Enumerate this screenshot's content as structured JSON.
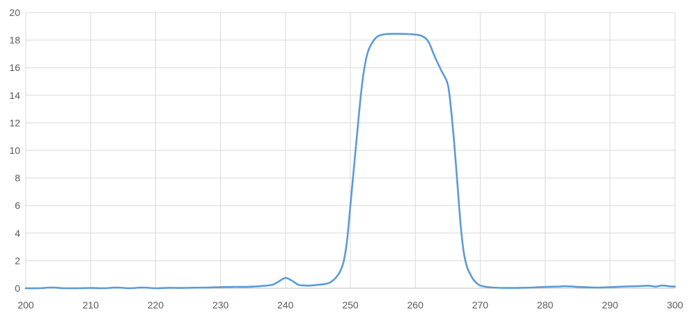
{
  "chart_data": {
    "type": "line",
    "title": "",
    "xlabel": "",
    "ylabel": "",
    "xlim": [
      200,
      300
    ],
    "ylim": [
      0,
      20
    ],
    "x_ticks": [
      200,
      210,
      220,
      230,
      240,
      250,
      260,
      270,
      280,
      290,
      300
    ],
    "y_ticks": [
      0,
      2,
      4,
      6,
      8,
      10,
      12,
      14,
      16,
      18,
      20
    ],
    "grid": true,
    "legend": "none",
    "series": [
      {
        "color": "#5b9bd5",
        "x": [
          200,
          202,
          204,
          206,
          208,
          210,
          212,
          214,
          216,
          218,
          220,
          222,
          224,
          226,
          228,
          230,
          232,
          234,
          236,
          238,
          239,
          240,
          241,
          242,
          243,
          244,
          245,
          246,
          247,
          248,
          248.5,
          249,
          249.5,
          250,
          250.5,
          251,
          251.5,
          252,
          252.5,
          253,
          254,
          255,
          256,
          258,
          260,
          261,
          262,
          263,
          264,
          265,
          265.5,
          266,
          266.5,
          267,
          267.5,
          268,
          268.5,
          269,
          270,
          272,
          275,
          278,
          280,
          282,
          283,
          285,
          288,
          290,
          292,
          294,
          296,
          297,
          298,
          299,
          300
        ],
        "y": [
          0.0,
          0.0,
          0.05,
          0.0,
          0.0,
          0.02,
          0.0,
          0.05,
          0.0,
          0.05,
          0.0,
          0.03,
          0.02,
          0.04,
          0.05,
          0.08,
          0.1,
          0.1,
          0.15,
          0.25,
          0.5,
          0.75,
          0.55,
          0.25,
          0.2,
          0.2,
          0.25,
          0.3,
          0.45,
          0.9,
          1.3,
          2.0,
          3.5,
          6.0,
          8.5,
          11.0,
          13.5,
          15.5,
          16.8,
          17.5,
          18.2,
          18.4,
          18.45,
          18.45,
          18.4,
          18.3,
          17.9,
          16.8,
          15.8,
          14.8,
          13.0,
          10.5,
          7.5,
          4.5,
          2.5,
          1.5,
          1.0,
          0.6,
          0.2,
          0.05,
          0.02,
          0.05,
          0.1,
          0.12,
          0.15,
          0.1,
          0.05,
          0.08,
          0.12,
          0.15,
          0.18,
          0.12,
          0.2,
          0.15,
          0.12
        ]
      }
    ]
  }
}
